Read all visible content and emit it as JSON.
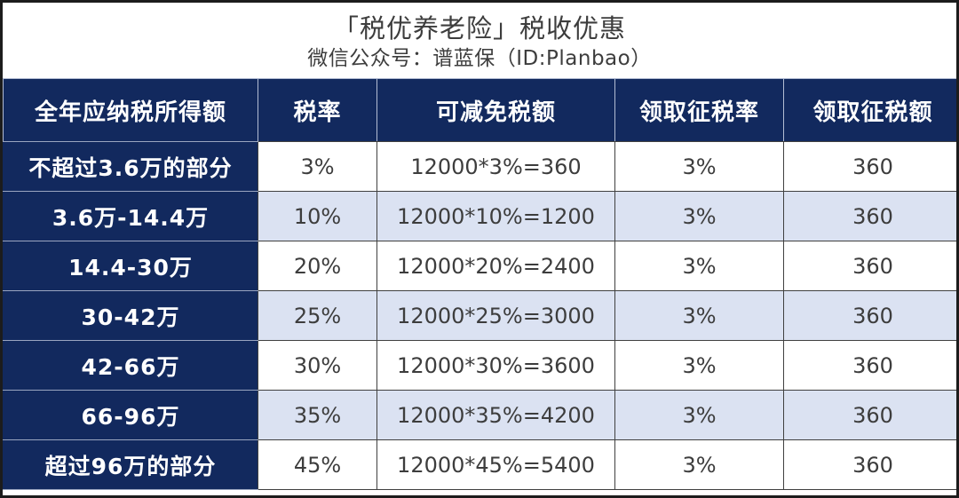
{
  "title": "「税优养老险」税收优惠",
  "subtitle": "微信公众号：谱蓝保（ID:Planbao）",
  "colors": {
    "navy": "#12295e",
    "lavender": "#dbe2f2",
    "text-dark": "#3d3d3d",
    "border-dark": "#404040",
    "border-light": "#9aa5c0",
    "header-sep": "#b3bdd4",
    "frame": "#1c1c1c"
  },
  "chart_data": {
    "type": "table",
    "title": "「税优养老险」税收优惠",
    "subtitle": "微信公众号：谱蓝保（ID:Planbao）",
    "columns": [
      "全年应纳税所得额",
      "税率",
      "可减免税额",
      "领取征税率",
      "领取征税额"
    ],
    "rows": [
      [
        "不超过3.6万的部分",
        "3%",
        "12000*3%=360",
        "3%",
        "360"
      ],
      [
        "3.6万-14.4万",
        "10%",
        "12000*10%=1200",
        "3%",
        "360"
      ],
      [
        "14.4-30万",
        "20%",
        "12000*20%=2400",
        "3%",
        "360"
      ],
      [
        "30-42万",
        "25%",
        "12000*25%=3000",
        "3%",
        "360"
      ],
      [
        "42-66万",
        "30%",
        "12000*30%=3600",
        "3%",
        "360"
      ],
      [
        "66-96万",
        "35%",
        "12000*35%=4200",
        "3%",
        "360"
      ],
      [
        "超过96万的部分",
        "45%",
        "12000*45%=5400",
        "3%",
        "360"
      ]
    ],
    "layout": {
      "header_background": "#12295e",
      "first_column_background": "#12295e",
      "row_stripe_colors": [
        "#ffffff",
        "#dbe2f2"
      ]
    }
  }
}
